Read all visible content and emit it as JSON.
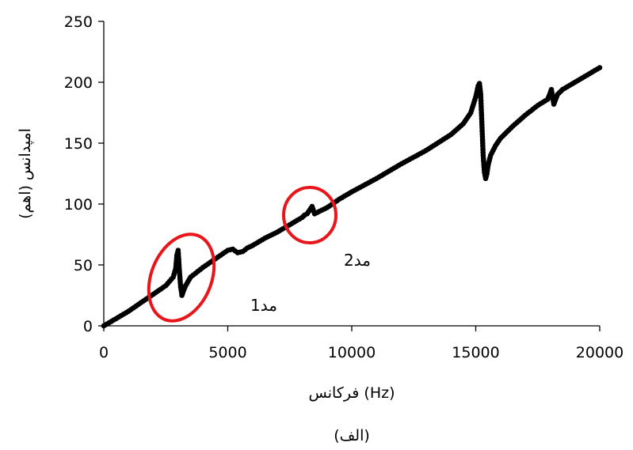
{
  "chart_data": {
    "type": "line",
    "xlabel": "فرکانس (Hz)",
    "ylabel": "امپدانس (اهم)",
    "caption": "(الف)",
    "xlim": [
      0,
      20000
    ],
    "ylim": [
      0,
      250
    ],
    "xticks": [
      0,
      5000,
      10000,
      15000,
      20000
    ],
    "yticks": [
      0,
      50,
      100,
      150,
      200,
      250
    ],
    "grid": false,
    "marker_color": "#000000",
    "highlight_color": "#e8161b",
    "series": [
      {
        "x": [
          0,
          500,
          1000,
          1500,
          2000,
          2500,
          2800,
          2900,
          2950,
          3000,
          3050,
          3100,
          3150,
          3200,
          3300,
          3500,
          4000,
          4500,
          5000,
          5200,
          5400,
          5600,
          5800,
          6000,
          6500,
          7000,
          7500,
          8000,
          8100,
          8200,
          8300,
          8400,
          8500,
          8700,
          9000,
          9500,
          10000,
          11000,
          12000,
          13000,
          14000,
          14500,
          14800,
          15000,
          15100,
          15150,
          15200,
          15250,
          15300,
          15350,
          15400,
          15450,
          15500,
          15600,
          15800,
          16000,
          16500,
          17000,
          17500,
          17900,
          18000,
          18050,
          18100,
          18150,
          18200,
          18300,
          18500,
          19000,
          19500,
          20000
        ],
        "y": [
          0,
          6,
          12,
          19,
          26,
          33,
          40,
          47,
          58,
          62,
          45,
          32,
          25,
          28,
          33,
          40,
          48,
          55,
          62,
          63,
          60,
          61,
          64,
          66,
          72,
          77,
          83,
          89,
          91,
          92,
          95,
          98,
          92,
          94,
          97,
          104,
          110,
          121,
          133,
          144,
          157,
          166,
          175,
          188,
          197,
          199,
          190,
          165,
          140,
          126,
          121,
          125,
          132,
          140,
          148,
          154,
          164,
          173,
          181,
          186,
          191,
          194,
          188,
          182,
          185,
          190,
          194,
          200,
          206,
          212
        ]
      }
    ],
    "annotations": [
      {
        "label": "مد1",
        "x": 3000,
        "y": 43
      },
      {
        "label": "مد2",
        "x": 8500,
        "y": 85
      }
    ]
  }
}
